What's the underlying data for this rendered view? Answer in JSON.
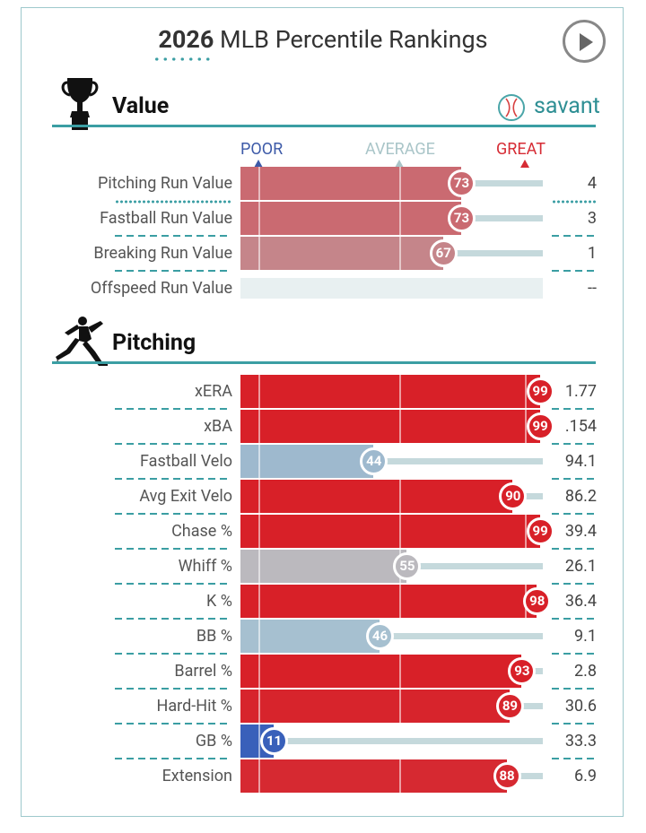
{
  "header": {
    "title_year": "2026",
    "title_rest": " MLB Percentile Rankings",
    "play_button": "play-icon"
  },
  "brand": {
    "savant_label": "savant",
    "accent": "#3b9ea3"
  },
  "scale": {
    "poor": "POOR",
    "average": "AVERAGE",
    "great": "GREAT",
    "poor_color": "#3d5aa8",
    "average_color": "#a9c5c8",
    "great_color": "#d62b34"
  },
  "chart_data": [
    {
      "type": "bar",
      "title": "Value",
      "xlim": [
        0,
        100
      ],
      "categories": [
        "Pitching Run Value",
        "Fastball Run Value",
        "Breaking Run Value",
        "Offspeed Run Value"
      ],
      "percentiles": [
        73,
        73,
        67,
        null
      ],
      "stat_values": [
        "4",
        "3",
        "1",
        "--"
      ]
    },
    {
      "type": "bar",
      "title": "Pitching",
      "xlim": [
        0,
        100
      ],
      "categories": [
        "xERA",
        "xBA",
        "Fastball Velo",
        "Avg Exit Velo",
        "Chase %",
        "Whiff %",
        "K %",
        "BB %",
        "Barrel %",
        "Hard-Hit %",
        "GB %",
        "Extension"
      ],
      "percentiles": [
        99,
        99,
        44,
        90,
        99,
        55,
        98,
        46,
        93,
        89,
        11,
        88
      ],
      "stat_values": [
        "1.77",
        ".154",
        "94.1",
        "86.2",
        "39.4",
        "26.1",
        "36.4",
        "9.1",
        "2.8",
        "30.6",
        "33.3",
        "6.9"
      ]
    }
  ]
}
